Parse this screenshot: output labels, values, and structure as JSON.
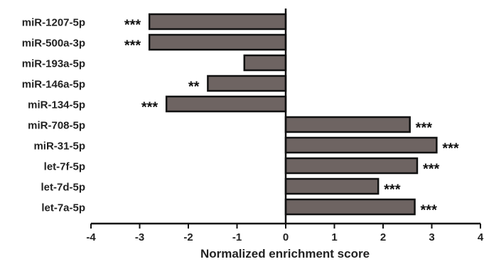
{
  "chart_data": {
    "type": "bar",
    "orientation": "horizontal",
    "categories": [
      "miR-1207-5p",
      "miR-500a-3p",
      "miR-193a-5p",
      "miR-146a-5p",
      "miR-134-5p",
      "miR-708-5p",
      "miR-31-5p",
      "let-7f-5p",
      "let-7d-5p",
      "let-7a-5p"
    ],
    "values": [
      -2.8,
      -2.8,
      -0.85,
      -1.6,
      -2.45,
      2.55,
      3.1,
      2.7,
      1.9,
      2.65
    ],
    "annotations": [
      "***",
      "***",
      "",
      "**",
      "***",
      "***",
      "***",
      "***",
      "***",
      "***"
    ],
    "title": "",
    "xlabel": "Normalized enrichment score",
    "ylabel": "",
    "xlim": [
      -4,
      4
    ],
    "xticks": [
      -4,
      -3,
      -2,
      -1,
      0,
      1,
      2,
      3,
      4
    ],
    "grid": false,
    "bar_color": "#6e6462",
    "bar_stroke": "#111111"
  }
}
